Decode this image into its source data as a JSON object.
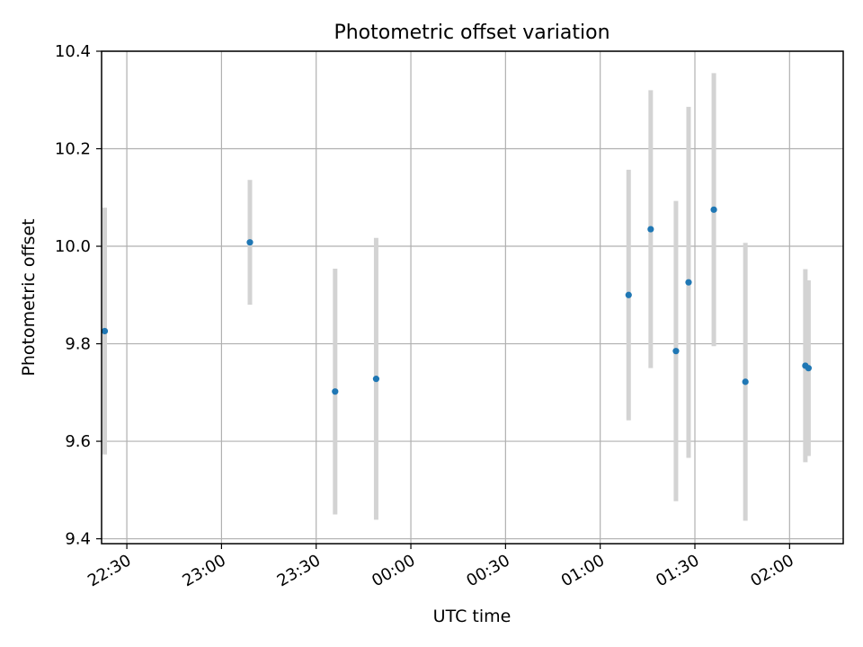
{
  "chart_data": {
    "type": "scatter",
    "title": "Photometric offset variation",
    "xlabel": "UTC time",
    "ylabel": "Photometric offset",
    "ylim": [
      9.39,
      10.4
    ],
    "xlim": [
      "22:22",
      "02:17"
    ],
    "x_ticks": [
      "22:30",
      "23:00",
      "23:30",
      "00:00",
      "00:30",
      "01:00",
      "01:30",
      "02:00"
    ],
    "y_ticks": [
      "9.4",
      "9.6",
      "9.8",
      "10.0",
      "10.2",
      "10.4"
    ],
    "grid": true,
    "point_color": "#1f77b4",
    "errorbar_color": "#d3d3d3",
    "points": [
      {
        "x": "22:23",
        "y": 9.826,
        "err": 0.253
      },
      {
        "x": "23:09",
        "y": 10.008,
        "err": 0.128
      },
      {
        "x": "23:36",
        "y": 9.702,
        "err": 0.252
      },
      {
        "x": "23:49",
        "y": 9.728,
        "err": 0.289
      },
      {
        "x": "01:09",
        "y": 9.9,
        "err": 0.257
      },
      {
        "x": "01:16",
        "y": 10.035,
        "err": 0.285
      },
      {
        "x": "01:24",
        "y": 9.785,
        "err": 0.308
      },
      {
        "x": "01:28",
        "y": 9.926,
        "err": 0.36
      },
      {
        "x": "01:36",
        "y": 10.075,
        "err": 0.28
      },
      {
        "x": "01:46",
        "y": 9.722,
        "err": 0.285
      },
      {
        "x": "02:05",
        "y": 9.755,
        "err": 0.198
      },
      {
        "x": "02:06",
        "y": 9.75,
        "err": 0.18
      }
    ]
  }
}
